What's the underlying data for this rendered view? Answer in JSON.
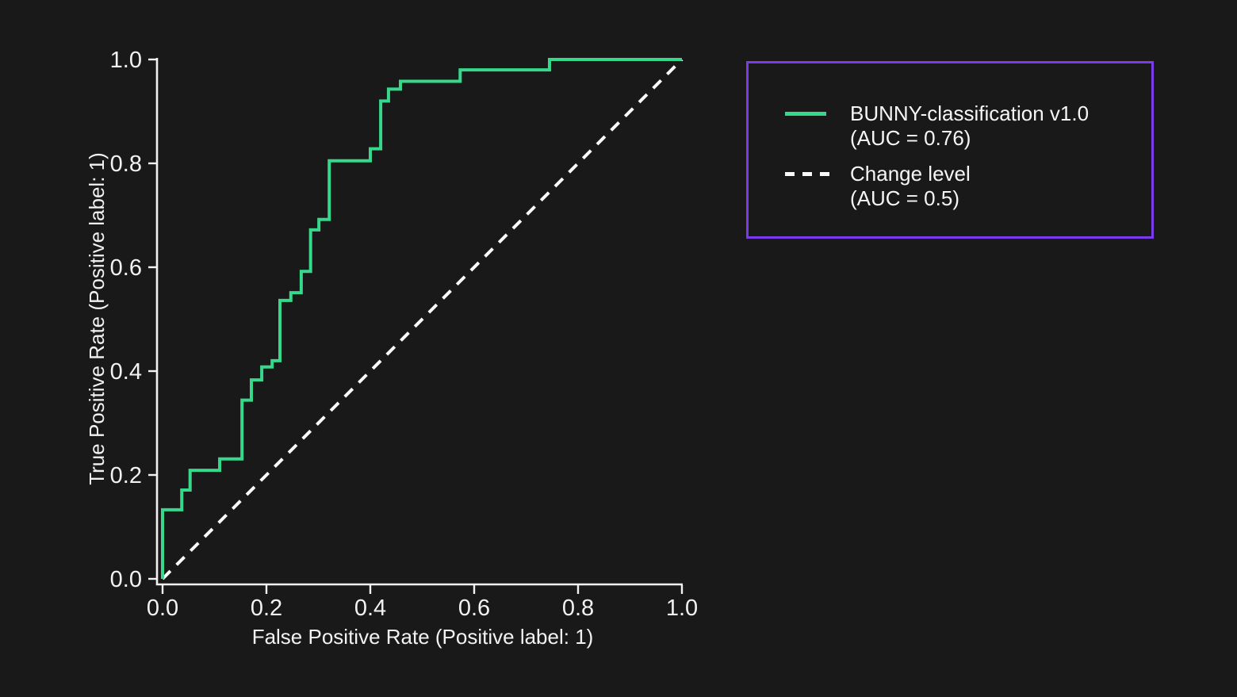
{
  "page": {
    "background_color": "#191919",
    "text_color": "#f2f2f2"
  },
  "chart_data": {
    "type": "line",
    "variant": "roc-curve",
    "title": "",
    "xlabel": "False Positive Rate (Positive label: 1)",
    "ylabel": "True Positive Rate (Positive label: 1)",
    "xlim": [
      0.0,
      1.0
    ],
    "ylim": [
      0.0,
      1.0
    ],
    "grid": false,
    "axis_color": "#f2f2f2",
    "legend_position": "outside-right",
    "xticks": {
      "values": [
        0.0,
        0.2,
        0.4,
        0.6,
        0.8,
        1.0
      ],
      "labels": [
        "0.0",
        "0.2",
        "0.4",
        "0.6",
        "0.8",
        "1.0"
      ]
    },
    "yticks": {
      "values": [
        0.0,
        0.2,
        0.4,
        0.6,
        0.8,
        1.0
      ],
      "labels": [
        "0.0",
        "0.2",
        "0.4",
        "0.6",
        "0.8",
        "1.0"
      ]
    },
    "series": [
      {
        "name": "BUNNY-classification v1.0 (AUC = 0.76)",
        "auc": 0.76,
        "draw": "step",
        "dash": "solid",
        "color": "#36d98c",
        "points": [
          [
            0.0,
            0.0
          ],
          [
            0.0,
            0.133
          ],
          [
            0.037,
            0.133
          ],
          [
            0.037,
            0.171
          ],
          [
            0.053,
            0.171
          ],
          [
            0.053,
            0.209
          ],
          [
            0.11,
            0.209
          ],
          [
            0.11,
            0.231
          ],
          [
            0.153,
            0.231
          ],
          [
            0.153,
            0.344
          ],
          [
            0.171,
            0.344
          ],
          [
            0.171,
            0.383
          ],
          [
            0.191,
            0.383
          ],
          [
            0.191,
            0.408
          ],
          [
            0.211,
            0.408
          ],
          [
            0.211,
            0.42
          ],
          [
            0.226,
            0.42
          ],
          [
            0.226,
            0.536
          ],
          [
            0.247,
            0.536
          ],
          [
            0.247,
            0.551
          ],
          [
            0.267,
            0.551
          ],
          [
            0.267,
            0.592
          ],
          [
            0.285,
            0.592
          ],
          [
            0.285,
            0.672
          ],
          [
            0.301,
            0.672
          ],
          [
            0.301,
            0.692
          ],
          [
            0.321,
            0.692
          ],
          [
            0.321,
            0.805
          ],
          [
            0.4,
            0.805
          ],
          [
            0.4,
            0.828
          ],
          [
            0.42,
            0.828
          ],
          [
            0.42,
            0.92
          ],
          [
            0.435,
            0.92
          ],
          [
            0.435,
            0.943
          ],
          [
            0.458,
            0.943
          ],
          [
            0.458,
            0.958
          ],
          [
            0.573,
            0.958
          ],
          [
            0.573,
            0.98
          ],
          [
            0.745,
            0.98
          ],
          [
            0.745,
            1.0
          ],
          [
            1.0,
            1.0
          ]
        ]
      },
      {
        "name": "Change level (AUC = 0.5)",
        "auc": 0.5,
        "draw": "line",
        "dash": "dashed",
        "color": "#fafafa",
        "points": [
          [
            0.0,
            0.0
          ],
          [
            1.0,
            1.0
          ]
        ]
      }
    ]
  },
  "legend": {
    "border_color": "#7c3aed",
    "entries": [
      {
        "line1": "BUNNY-classification v1.0",
        "line2": "(AUC = 0.76)",
        "swatch": "solid-green-line"
      },
      {
        "line1": "Change level",
        "line2": "(AUC = 0.5)",
        "swatch": "dashed-white-line"
      }
    ]
  }
}
